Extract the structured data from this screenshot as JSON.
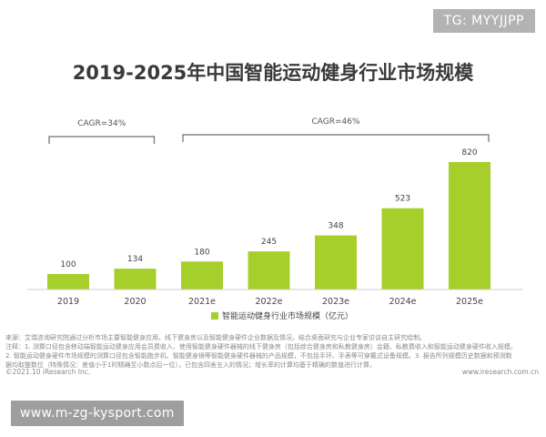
{
  "watermark_top": "TG: MYYJJPP",
  "watermark_bottom": "www.m-zg-kysport.com",
  "source_notes": [
    "来源：艾瑞咨询研究院通过分析市场主要智能健身应用、线下健身房以及智能健身硬件企业数据及情况，结合桌面研究与企业专家访谈自主研究绘制。",
    "注释：1. 测算口径包含移动端智能运动健身应用会员费收入、使用智能健身硬件器械的线下健身房（包括综合健身房和私教健身房）会籍、私教费收入和智能运动健身硬件收入规模。",
    "2. 智能运动健身硬件市场规模的测算口径包含智能跑步机、智能健身镜等智能健身硬件器械的产品规模，不包括手环、手表等可穿戴式设备规模。3. 报告所列规模历史数据和预测数",
    "据均取整数位（特殊情况：差值小于1时精确至小数点后一位），已包含四舍五入的情况；增长率的计算均基于精确的数值进行计算。"
  ],
  "copyright": "©2021.10 iResearch Inc.",
  "site": "www.iresearch.com.cn",
  "colors": {
    "bar": "#a6cf2b",
    "bracket": "#6f6f6f",
    "axis": "#cfcfcf"
  },
  "chart_data": {
    "type": "bar",
    "title": "2019-2025年中国智能运动健身行业市场规模",
    "categories": [
      "2019",
      "2020",
      "2021e",
      "2022e",
      "2023e",
      "2024e",
      "2025e"
    ],
    "series": [
      {
        "name": "智能运动健身行业市场规模（亿元）",
        "values": [
          100,
          134,
          180,
          245,
          348,
          523,
          820
        ]
      }
    ],
    "annotations": [
      {
        "text": "CAGR=34%",
        "from": "2019",
        "to": "2020"
      },
      {
        "text": "CAGR=46%",
        "from": "2021e",
        "to": "2025e"
      }
    ],
    "legend_position": "bottom",
    "grid": false
  }
}
